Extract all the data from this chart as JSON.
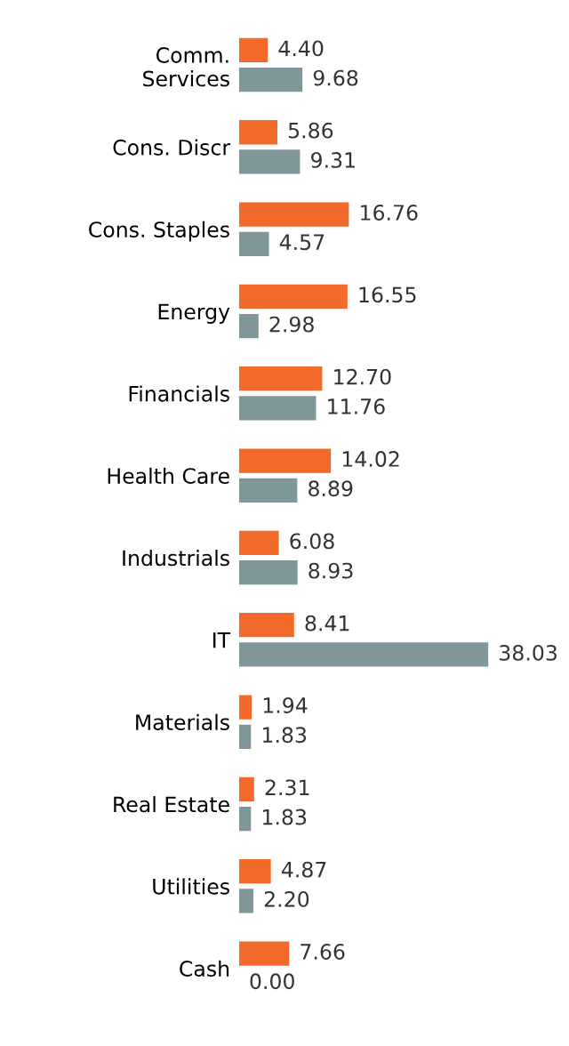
{
  "chart_data": {
    "type": "bar",
    "orientation": "horizontal",
    "categories": [
      "Comm.\nServices",
      "Cons. Discr",
      "Cons. Staples",
      "Energy",
      "Financials",
      "Health Care",
      "Industrials",
      "IT",
      "Materials",
      "Real Estate",
      "Utilities",
      "Cash"
    ],
    "series": [
      {
        "color": "#f26a2a",
        "values": [
          4.4,
          5.86,
          16.76,
          16.55,
          12.7,
          14.02,
          6.08,
          8.41,
          1.94,
          2.31,
          4.87,
          7.66
        ],
        "value_labels": [
          "4.40",
          "5.86",
          "16.76",
          "16.55",
          "12.70",
          "14.02",
          "6.08",
          "8.41",
          "1.94",
          "2.31",
          "4.87",
          "7.66"
        ]
      },
      {
        "color": "#7f9799",
        "values": [
          9.68,
          9.31,
          4.57,
          2.98,
          11.76,
          8.89,
          8.93,
          38.03,
          1.83,
          1.83,
          2.2,
          0.0
        ],
        "value_labels": [
          "9.68",
          "9.31",
          "4.57",
          "2.98",
          "11.76",
          "8.89",
          "8.93",
          "38.03",
          "1.83",
          "1.83",
          "2.20",
          "0.00"
        ]
      }
    ],
    "tick_labels": "y",
    "grid": false
  }
}
